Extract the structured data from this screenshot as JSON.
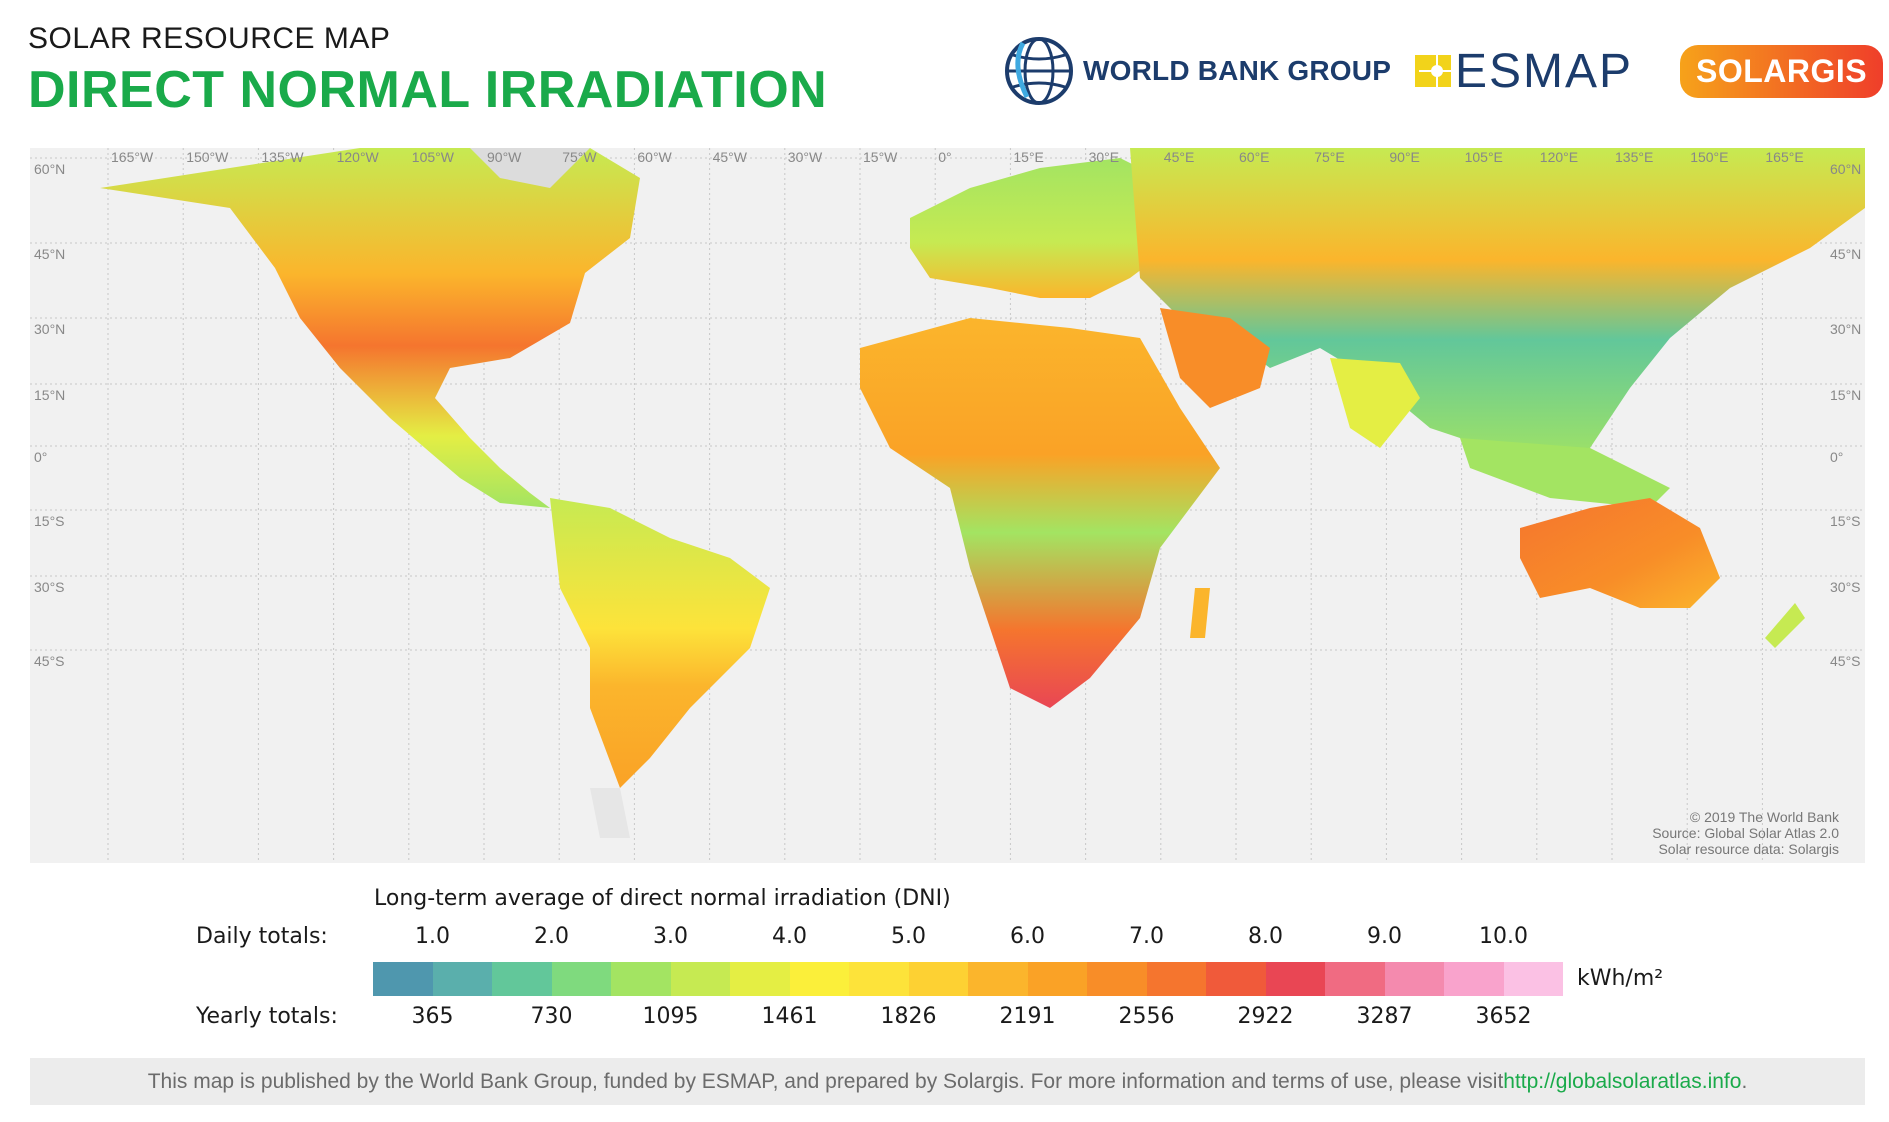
{
  "header": {
    "subtitle": "SOLAR RESOURCE MAP",
    "title": "DIRECT NORMAL IRRADIATION"
  },
  "logos": {
    "world_bank": "WORLD BANK GROUP",
    "esmap": "ESMAP",
    "solargis": "SOLARGIS"
  },
  "map": {
    "longitude_labels": [
      "165°W",
      "150°W",
      "135°W",
      "120°W",
      "105°W",
      "90°W",
      "75°W",
      "60°W",
      "45°W",
      "30°W",
      "15°W",
      "0°",
      "15°E",
      "30°E",
      "45°E",
      "60°E",
      "75°E",
      "90°E",
      "105°E",
      "120°E",
      "135°E",
      "150°E",
      "165°E"
    ],
    "latitude_labels": [
      "60°N",
      "45°N",
      "30°N",
      "15°N",
      "0°",
      "15°S",
      "30°S",
      "45°S"
    ],
    "credits": [
      "© 2019 The World Bank",
      "Source: Global Solar Atlas 2.0",
      "Solar resource data: Solargis"
    ]
  },
  "legend": {
    "caption": "Long-term average of direct normal irradiation (DNI)",
    "daily_label": "Daily totals:",
    "yearly_label": "Yearly totals:",
    "daily_ticks": [
      "1.0",
      "2.0",
      "3.0",
      "4.0",
      "5.0",
      "6.0",
      "7.0",
      "8.0",
      "9.0",
      "10.0"
    ],
    "yearly_ticks": [
      "365",
      "730",
      "1095",
      "1461",
      "1826",
      "2191",
      "2556",
      "2922",
      "3287",
      "3652"
    ],
    "unit": "kWh/m²",
    "colors": [
      "#4f97ae",
      "#5aafac",
      "#62c79a",
      "#7fda7e",
      "#a3e462",
      "#c6ea52",
      "#e4ee44",
      "#fbef3a",
      "#fde33a",
      "#fdd133",
      "#fbb52c",
      "#faa226",
      "#f88d28",
      "#f5752e",
      "#f05a3a",
      "#e94654",
      "#f06b82",
      "#f48aae",
      "#f9a3cc",
      "#fbc1e4"
    ]
  },
  "footer": {
    "text": "This map is published by the World Bank Group, funded by ESMAP, and prepared by Solargis. For more information and terms of use, please visit ",
    "link": "http://globalsolaratlas.info",
    "end": "."
  }
}
